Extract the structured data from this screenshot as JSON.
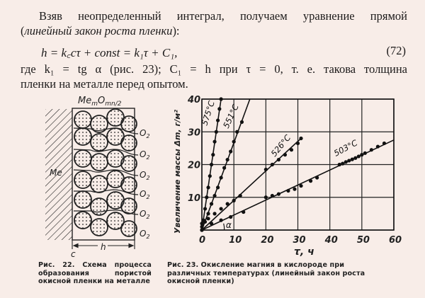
{
  "text": {
    "para1_line1": "Взяв неопределенный интеграл, получаем уравнение прямой",
    "para1_line2_open": "(",
    "para1_line2_italic": "линейный закон роста пленки",
    "para1_line2_close": "):",
    "equation": "h = k꜀cτ + const = k₁τ + C₁,",
    "equation_number": "(72)",
    "para2_line1": "где k₁ = tg α (рис. 23); C₁ = h при τ = 0, т. е. такова толщина",
    "para2_line2": "пленки на металле перед опытом."
  },
  "figure22": {
    "top_label": "MemOmn/2",
    "metal_label": "Me",
    "oxygen_labels": [
      "O₂",
      "O₂",
      "O₂",
      "O₂",
      "O₂",
      "O₂"
    ],
    "thickness_label": "h",
    "c_label": "c",
    "caption": "Рис. 22. Схема процесса образования пористой окисной пленки на металле"
  },
  "figure23": {
    "caption": "Рис. 23. Окисление магния в кислороде при различных температурах (линейный закон роста окисной пленки)",
    "angle_label": "α"
  },
  "chart_data": {
    "type": "line",
    "title": "Окисление магния в кислороде при различных температурах",
    "xlabel": "τ, ч",
    "ylabel": "Увеличение массы Δm, г/м²",
    "xlim": [
      0,
      60
    ],
    "ylim": [
      0,
      40
    ],
    "xticks": [
      0,
      10,
      20,
      30,
      40,
      50,
      60
    ],
    "yticks": [
      0,
      10,
      20,
      30,
      40
    ],
    "grid": true,
    "series": [
      {
        "name": "575°C",
        "x": [
          0,
          0.5,
          1,
          1.5,
          2,
          2.5,
          3,
          3.5,
          4,
          4.5,
          5,
          5.5,
          6
        ],
        "y": [
          0,
          3,
          6.5,
          10,
          13,
          16.5,
          20,
          23,
          27,
          30,
          33.5,
          37,
          40
        ]
      },
      {
        "name": "551°C",
        "x": [
          0,
          1,
          2,
          3,
          4,
          5,
          6,
          7,
          8,
          9,
          10,
          11,
          12.5
        ],
        "y": [
          0,
          2.5,
          5,
          8,
          10.5,
          13,
          16,
          19,
          21.5,
          24,
          27,
          30,
          33
        ]
      },
      {
        "name": "526°C",
        "x": [
          0,
          2,
          4,
          6,
          8,
          10,
          12,
          20,
          22,
          24,
          26,
          28,
          30,
          31
        ],
        "y": [
          2,
          3.5,
          5,
          6.5,
          8,
          9,
          10.5,
          18.5,
          20,
          21.5,
          23,
          24.5,
          26.5,
          28
        ]
      },
      {
        "name": "503°C",
        "x": [
          0,
          3,
          6,
          9,
          13,
          20,
          22,
          24,
          27,
          29,
          31,
          34,
          36,
          43,
          44,
          45,
          46,
          47,
          48,
          49,
          50,
          51,
          53,
          55,
          57
        ],
        "y": [
          1,
          2,
          3,
          4,
          5.5,
          10,
          10.5,
          11,
          12,
          12.5,
          13.5,
          15,
          16,
          20,
          20.3,
          20.8,
          21.2,
          21.6,
          22,
          22.5,
          23,
          23.5,
          24.5,
          25.5,
          26.5
        ]
      }
    ]
  }
}
